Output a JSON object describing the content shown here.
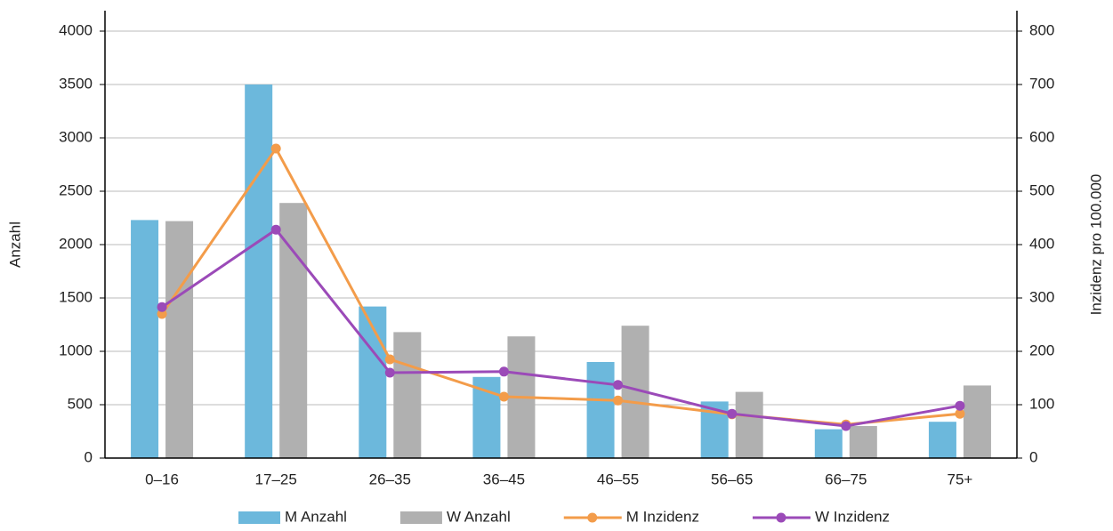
{
  "chart_data": {
    "type": "bar",
    "categories": [
      "0–16",
      "17–25",
      "26–35",
      "36–45",
      "46–55",
      "56–65",
      "66–75",
      "75+"
    ],
    "y_label": "Anzahl",
    "y2_label": "Inzidenz pro 100.000",
    "ylim": [
      0,
      4000
    ],
    "yticks": [
      0,
      500,
      1000,
      1500,
      2000,
      2500,
      3000,
      3500,
      4000
    ],
    "y2lim": [
      0,
      800
    ],
    "y2ticks": [
      0,
      100,
      200,
      300,
      400,
      500,
      600,
      700,
      800
    ],
    "grid": true,
    "legend": "bottom",
    "series": [
      {
        "name": "M Anzahl",
        "type": "bar",
        "color": "#6cb8dc",
        "values": [
          2230,
          3500,
          1420,
          760,
          900,
          530,
          270,
          340
        ]
      },
      {
        "name": "W Anzahl",
        "type": "bar",
        "color": "#b0b0b0",
        "values": [
          2220,
          2390,
          1180,
          1140,
          1240,
          620,
          300,
          680
        ]
      },
      {
        "name": "M Inzidenz",
        "type": "line",
        "axis": "y2",
        "color": "#f39c4a",
        "values": [
          270,
          580,
          185,
          115,
          108,
          82,
          63,
          83
        ]
      },
      {
        "name": "W Inzidenz",
        "type": "line",
        "axis": "y2",
        "color": "#9b4ab8",
        "values": [
          283,
          428,
          160,
          162,
          137,
          83,
          60,
          98
        ]
      }
    ]
  }
}
